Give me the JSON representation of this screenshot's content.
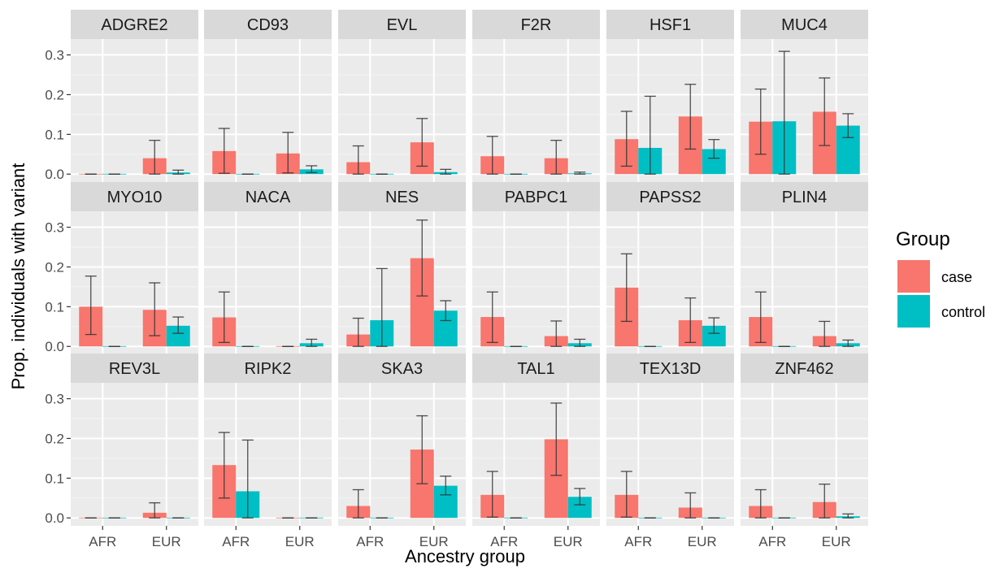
{
  "chart_data": {
    "type": "bar",
    "xlabel": "Ancestry group",
    "ylabel": "Prop. individuals with variant",
    "ylim": [
      -0.02,
      0.34
    ],
    "yticks": [
      0.0,
      0.1,
      0.2,
      0.3
    ],
    "ytick_labels": [
      "0.0",
      "0.1",
      "0.2",
      "0.3"
    ],
    "categories": [
      "AFR",
      "EUR"
    ],
    "grid": true,
    "legend": {
      "title": "Group",
      "position": "right",
      "entries": [
        {
          "name": "case",
          "color": "#F8766D"
        },
        {
          "name": "control",
          "color": "#00BFC4"
        }
      ]
    },
    "series_order": [
      "case",
      "control"
    ],
    "panels": [
      {
        "title": "ADGRE2",
        "values": {
          "case": [
            0.0,
            0.04
          ],
          "control": [
            0.0,
            0.004
          ]
        },
        "errors": {
          "case": [
            [
              0.0,
              0.0
            ],
            [
              0.0,
              0.085
            ]
          ],
          "control": [
            [
              0.0,
              0.0
            ],
            [
              0.0,
              0.01
            ]
          ]
        }
      },
      {
        "title": "CD93",
        "values": {
          "case": [
            0.058,
            0.052
          ],
          "control": [
            0.0,
            0.012
          ]
        },
        "errors": {
          "case": [
            [
              0.002,
              0.115
            ],
            [
              0.003,
              0.105
            ]
          ],
          "control": [
            [
              0.0,
              0.0
            ],
            [
              0.004,
              0.021
            ]
          ]
        }
      },
      {
        "title": "EVL",
        "values": {
          "case": [
            0.03,
            0.08
          ],
          "control": [
            0.0,
            0.005
          ]
        },
        "errors": {
          "case": [
            [
              0.0,
              0.071
            ],
            [
              0.02,
              0.14
            ]
          ],
          "control": [
            [
              0.0,
              0.0
            ],
            [
              0.0,
              0.012
            ]
          ]
        }
      },
      {
        "title": "F2R",
        "values": {
          "case": [
            0.045,
            0.04
          ],
          "control": [
            0.0,
            0.002
          ]
        },
        "errors": {
          "case": [
            [
              0.0,
              0.095
            ],
            [
              0.0,
              0.085
            ]
          ],
          "control": [
            [
              0.0,
              0.0
            ],
            [
              0.0,
              0.005
            ]
          ]
        }
      },
      {
        "title": "HSF1",
        "values": {
          "case": [
            0.088,
            0.145
          ],
          "control": [
            0.066,
            0.063
          ]
        },
        "errors": {
          "case": [
            [
              0.02,
              0.158
            ],
            [
              0.063,
              0.226
            ]
          ],
          "control": [
            [
              0.0,
              0.196
            ],
            [
              0.04,
              0.087
            ]
          ]
        }
      },
      {
        "title": "MUC4",
        "values": {
          "case": [
            0.132,
            0.157
          ],
          "control": [
            0.133,
            0.122
          ]
        },
        "errors": {
          "case": [
            [
              0.05,
              0.214
            ],
            [
              0.072,
              0.242
            ]
          ],
          "control": [
            [
              0.0,
              0.309
            ],
            [
              0.092,
              0.152
            ]
          ]
        }
      },
      {
        "title": "MYO10",
        "values": {
          "case": [
            0.1,
            0.092
          ],
          "control": [
            0.0,
            0.052
          ]
        },
        "errors": {
          "case": [
            [
              0.03,
              0.177
            ],
            [
              0.027,
              0.16
            ]
          ],
          "control": [
            [
              0.0,
              0.0
            ],
            [
              0.033,
              0.074
            ]
          ]
        }
      },
      {
        "title": "NACA",
        "values": {
          "case": [
            0.073,
            0.0
          ],
          "control": [
            0.0,
            0.008
          ]
        },
        "errors": {
          "case": [
            [
              0.01,
              0.137
            ],
            [
              0.0,
              0.0
            ]
          ],
          "control": [
            [
              0.0,
              0.0
            ],
            [
              0.0,
              0.018
            ]
          ]
        }
      },
      {
        "title": "NES",
        "values": {
          "case": [
            0.03,
            0.222
          ],
          "control": [
            0.066,
            0.09
          ]
        },
        "errors": {
          "case": [
            [
              0.0,
              0.071
            ],
            [
              0.127,
              0.318
            ]
          ],
          "control": [
            [
              0.0,
              0.196
            ],
            [
              0.065,
              0.115
            ]
          ]
        }
      },
      {
        "title": "PABPC1",
        "values": {
          "case": [
            0.074,
            0.026
          ],
          "control": [
            0.0,
            0.008
          ]
        },
        "errors": {
          "case": [
            [
              0.01,
              0.137
            ],
            [
              0.0,
              0.064
            ]
          ],
          "control": [
            [
              0.0,
              0.0
            ],
            [
              0.0,
              0.018
            ]
          ]
        }
      },
      {
        "title": "PAPSS2",
        "values": {
          "case": [
            0.148,
            0.066
          ],
          "control": [
            0.0,
            0.052
          ]
        },
        "errors": {
          "case": [
            [
              0.063,
              0.233
            ],
            [
              0.01,
              0.122
            ]
          ],
          "control": [
            [
              0.0,
              0.0
            ],
            [
              0.033,
              0.072
            ]
          ]
        }
      },
      {
        "title": "PLIN4",
        "values": {
          "case": [
            0.074,
            0.026
          ],
          "control": [
            0.0,
            0.008
          ]
        },
        "errors": {
          "case": [
            [
              0.01,
              0.137
            ],
            [
              0.0,
              0.063
            ]
          ],
          "control": [
            [
              0.0,
              0.0
            ],
            [
              0.0,
              0.016
            ]
          ]
        }
      },
      {
        "title": "REV3L",
        "values": {
          "case": [
            0.0,
            0.013
          ],
          "control": [
            0.0,
            0.0
          ]
        },
        "errors": {
          "case": [
            [
              0.0,
              0.0
            ],
            [
              0.0,
              0.038
            ]
          ],
          "control": [
            [
              0.0,
              0.0
            ],
            [
              0.0,
              0.0
            ]
          ]
        }
      },
      {
        "title": "RIPK2",
        "values": {
          "case": [
            0.133,
            0.0
          ],
          "control": [
            0.067,
            0.0
          ]
        },
        "errors": {
          "case": [
            [
              0.05,
              0.215
            ],
            [
              0.0,
              0.0
            ]
          ],
          "control": [
            [
              0.0,
              0.196
            ],
            [
              0.0,
              0.0
            ]
          ]
        }
      },
      {
        "title": "SKA3",
        "values": {
          "case": [
            0.03,
            0.172
          ],
          "control": [
            0.0,
            0.081
          ]
        },
        "errors": {
          "case": [
            [
              0.0,
              0.071
            ],
            [
              0.086,
              0.257
            ]
          ],
          "control": [
            [
              0.0,
              0.0
            ],
            [
              0.058,
              0.105
            ]
          ]
        }
      },
      {
        "title": "TAL1",
        "values": {
          "case": [
            0.058,
            0.198
          ],
          "control": [
            0.0,
            0.053
          ]
        },
        "errors": {
          "case": [
            [
              0.002,
              0.117
            ],
            [
              0.107,
              0.289
            ]
          ],
          "control": [
            [
              0.0,
              0.0
            ],
            [
              0.033,
              0.074
            ]
          ]
        }
      },
      {
        "title": "TEX13D",
        "values": {
          "case": [
            0.058,
            0.026
          ],
          "control": [
            0.0,
            0.0
          ]
        },
        "errors": {
          "case": [
            [
              0.002,
              0.117
            ],
            [
              0.0,
              0.063
            ]
          ],
          "control": [
            [
              0.0,
              0.0
            ],
            [
              0.0,
              0.0
            ]
          ]
        }
      },
      {
        "title": "ZNF462",
        "values": {
          "case": [
            0.03,
            0.04
          ],
          "control": [
            0.0,
            0.004
          ]
        },
        "errors": {
          "case": [
            [
              0.0,
              0.071
            ],
            [
              0.0,
              0.085
            ]
          ],
          "control": [
            [
              0.0,
              0.0
            ],
            [
              0.0,
              0.01
            ]
          ]
        }
      }
    ]
  }
}
